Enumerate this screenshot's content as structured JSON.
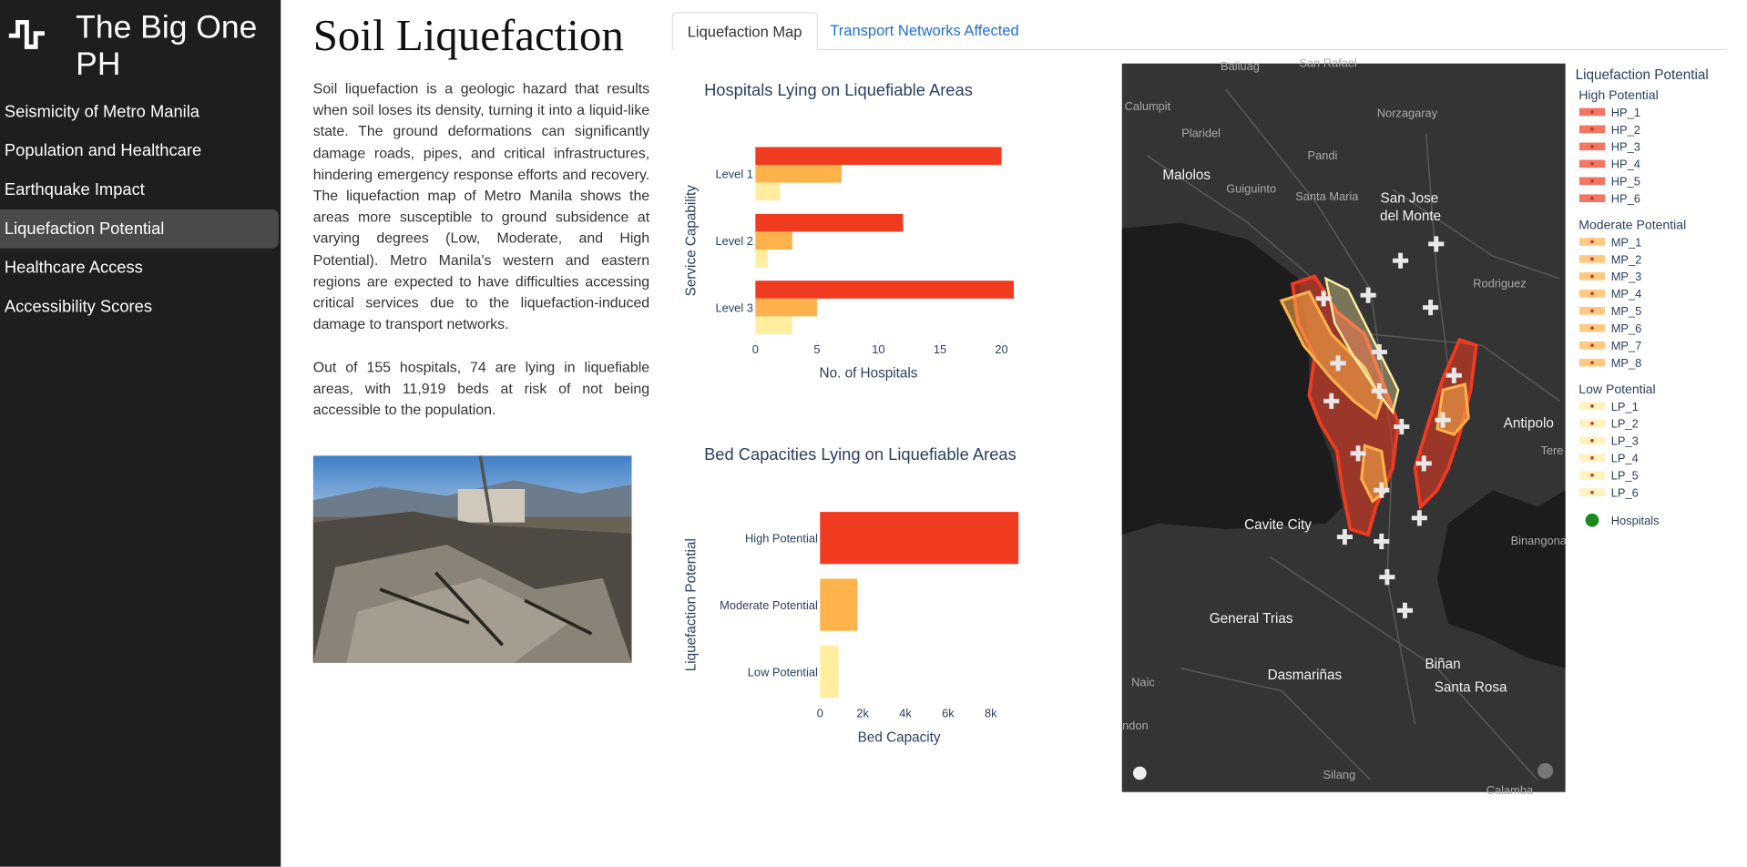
{
  "sidebar": {
    "title": "The Big One PH",
    "nav": [
      "Seismicity of Metro Manila",
      "Population and Healthcare",
      "Earthquake Impact",
      "Liquefaction Potential",
      "Healthcare Access",
      "Accessibility Scores"
    ]
  },
  "header": {
    "title": "Soil Liquefaction"
  },
  "tabs": [
    "Liquefaction Map",
    "Transport Networks Affected"
  ],
  "paragraphs": [
    "Soil liquefaction is a geologic hazard that results when soil loses its density, turning it into a liquid-like state. The ground deformations can significantly damage roads, pipes, and critical infrastructures, hindering emergency response efforts and recovery. The liquefaction map of Metro Manila shows the areas more susceptible to ground subsidence at varying degrees (Low, Moderate, and High Potential). Metro Manila's western and eastern regions are expected to have difficulties accessing critical services due to the liquefaction-induced damage to transport networks.",
    "Out of 155 hospitals, 74 are lying in liquefiable areas, with 11,919 beds at risk of not being accessible to the population."
  ],
  "chart_data": [
    {
      "type": "bar",
      "orientation": "horizontal",
      "title": "Hospitals Lying on Liquefiable Areas",
      "x_label": "No. of Hospitals",
      "y_label": "Service Capability",
      "categories": [
        "Level 1",
        "Level 2",
        "Level 3"
      ],
      "series": [
        {
          "color": "#f03b20",
          "values": [
            20,
            12,
            21
          ]
        },
        {
          "color": "#feb24c",
          "values": [
            7,
            3,
            5
          ]
        },
        {
          "color": "#ffeda0",
          "values": [
            2,
            1,
            3
          ]
        }
      ],
      "xlim": [
        0,
        22
      ],
      "xticks": [
        0,
        5,
        10,
        15,
        20
      ]
    },
    {
      "type": "bar",
      "orientation": "horizontal",
      "title": "Bed Capacities Lying on Liquefiable Areas",
      "x_label": "Bed Capacity",
      "y_label": "Liquefaction Potential",
      "categories": [
        "High Potential",
        "Moderate Potential",
        "Low Potential"
      ],
      "values": [
        9300,
        1750,
        870
      ],
      "colors": [
        "#f03b20",
        "#feb24c",
        "#ffeda0"
      ],
      "xlim": [
        0,
        9500
      ],
      "xticks": [
        0,
        {
          "value": 2000,
          "label": "2k"
        },
        {
          "value": 4000,
          "label": "4k"
        },
        {
          "value": 6000,
          "label": "6k"
        },
        {
          "value": 8000,
          "label": "8k"
        }
      ]
    }
  ],
  "map": {
    "place_labels": [
      "Baliuag",
      "San Rafael",
      "Calumpit",
      "Norzagaray",
      "Plaridel",
      "Pandi",
      "Malolos",
      "Guiguinto",
      "Santa Maria",
      "San Jose",
      "del Monte",
      "Rodriguez",
      "Antipolo",
      "Tere",
      "Cavite City",
      "Binangona",
      "General Trias",
      "Dasmariñas",
      "Biñan",
      "Santa Rosa",
      "Naic",
      "ndon",
      "Silang",
      "Calamba"
    ],
    "legend": {
      "title": "Liquefaction Potential",
      "groups": [
        {
          "title": "High Potential",
          "color": "#f03b20",
          "items": [
            "HP_1",
            "HP_2",
            "HP_3",
            "HP_4",
            "HP_5",
            "HP_6"
          ]
        },
        {
          "title": "Moderate Potential",
          "color": "#feb24c",
          "items": [
            "MP_1",
            "MP_2",
            "MP_3",
            "MP_4",
            "MP_5",
            "MP_6",
            "MP_7",
            "MP_8"
          ]
        },
        {
          "title": "Low Potential",
          "color": "#ffeda0",
          "items": [
            "LP_1",
            "LP_2",
            "LP_3",
            "LP_4",
            "LP_5",
            "LP_6"
          ]
        }
      ],
      "hospitals": {
        "label": "Hospitals",
        "color": "#1a8a1a"
      }
    }
  }
}
